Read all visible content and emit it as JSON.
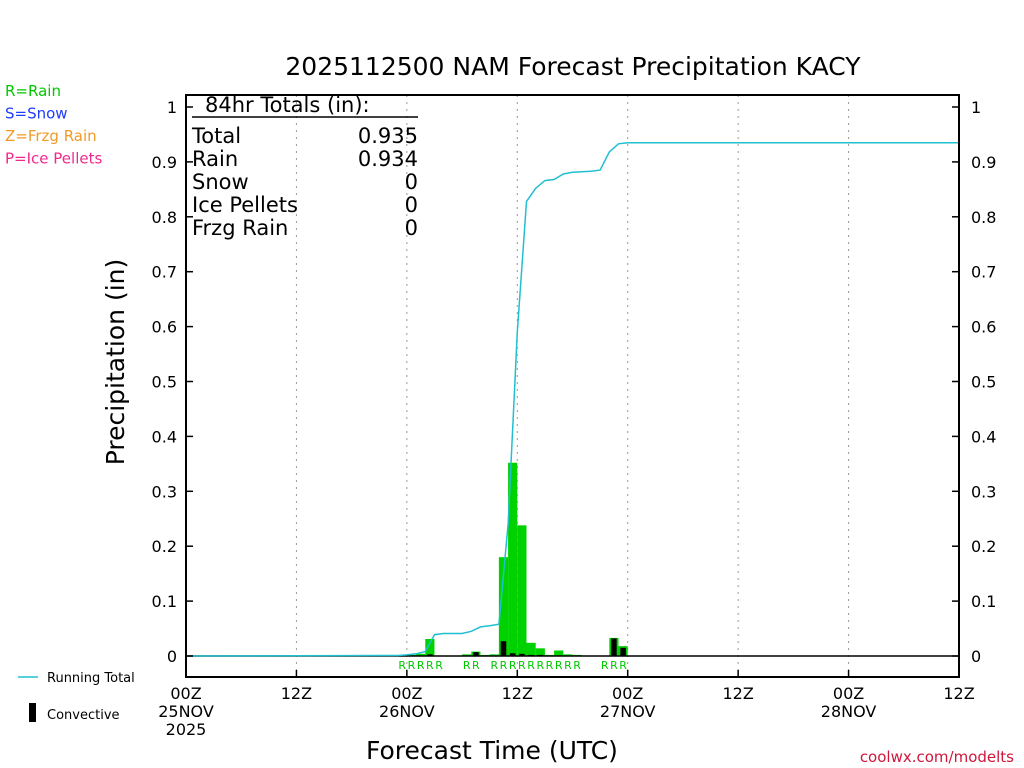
{
  "chart_data": {
    "type": "bar",
    "title": "2025112500 NAM Forecast Precipitation KACY",
    "xlabel": "Forecast Time (UTC)",
    "ylabel": "Precipitation (in)",
    "ylim": [
      0,
      1
    ],
    "xlim_hours": [
      0,
      84
    ],
    "y_ticks": [
      "0",
      "0.1",
      "0.2",
      "0.3",
      "0.4",
      "0.5",
      "0.6",
      "0.7",
      "0.8",
      "0.9",
      "1"
    ],
    "x_ticks": [
      {
        "hour": 0,
        "lines": [
          "00Z",
          "25NOV",
          "2025"
        ]
      },
      {
        "hour": 12,
        "lines": [
          "12Z"
        ]
      },
      {
        "hour": 24,
        "lines": [
          "00Z",
          "26NOV"
        ]
      },
      {
        "hour": 36,
        "lines": [
          "12Z"
        ]
      },
      {
        "hour": 48,
        "lines": [
          "00Z",
          "27NOV"
        ]
      },
      {
        "hour": 60,
        "lines": [
          "12Z"
        ]
      },
      {
        "hour": 72,
        "lines": [
          "00Z",
          "28NOV"
        ]
      },
      {
        "hour": 84,
        "lines": [
          "12Z"
        ]
      }
    ],
    "grid": "vertical dotted lines at tick hours",
    "precip_type_legend": [
      {
        "label": "R=Rain",
        "color": "#00c800"
      },
      {
        "label": "S=Snow",
        "color": "#1e3cff"
      },
      {
        "label": "Z=Frzg Rain",
        "color": "#f09a28"
      },
      {
        "label": "P=Ice Pellets",
        "color": "#f0288c"
      }
    ],
    "series_legend": [
      {
        "label": "Running Total",
        "color": "#20c0d0"
      },
      {
        "label": "Convective",
        "color": "#000000"
      }
    ],
    "totals": {
      "heading": "84hr Totals (in):",
      "rows": [
        {
          "label": "Total",
          "value": "0.935"
        },
        {
          "label": "Rain",
          "value": "0.934"
        },
        {
          "label": "Snow",
          "value": "0"
        },
        {
          "label": "Ice Pellets",
          "value": "0"
        },
        {
          "label": "Frzg Rain",
          "value": "0"
        }
      ]
    },
    "bars": [
      {
        "hour": 24,
        "value": 0.001,
        "convective": 0
      },
      {
        "hour": 25,
        "value": 0.002,
        "convective": 0
      },
      {
        "hour": 26,
        "value": 0.004,
        "convective": 0.001
      },
      {
        "hour": 27,
        "value": 0.031,
        "convective": 0.003
      },
      {
        "hour": 31,
        "value": 0.003,
        "convective": 0
      },
      {
        "hour": 32,
        "value": 0.008,
        "convective": 0.007
      },
      {
        "hour": 33,
        "value": 0.002,
        "convective": 0
      },
      {
        "hour": 34,
        "value": 0.003,
        "convective": 0
      },
      {
        "hour": 35,
        "value": 0.18,
        "convective": 0.027
      },
      {
        "hour": 36,
        "value": 0.352,
        "convective": 0.005
      },
      {
        "hour": 37,
        "value": 0.238,
        "convective": 0.004
      },
      {
        "hour": 38,
        "value": 0.024,
        "convective": 0.002
      },
      {
        "hour": 39,
        "value": 0.014,
        "convective": 0.002
      },
      {
        "hour": 40,
        "value": 0.002,
        "convective": 0
      },
      {
        "hour": 41,
        "value": 0.01,
        "convective": 0.001
      },
      {
        "hour": 42,
        "value": 0.003,
        "convective": 0
      },
      {
        "hour": 43,
        "value": 0.002,
        "convective": 0
      },
      {
        "hour": 47,
        "value": 0.033,
        "convective": 0.032
      },
      {
        "hour": 48,
        "value": 0.018,
        "convective": 0.015
      }
    ],
    "ptype_labels": [
      {
        "hour": 24,
        "label": "R"
      },
      {
        "hour": 25,
        "label": "R"
      },
      {
        "hour": 26,
        "label": "R"
      },
      {
        "hour": 27,
        "label": "R"
      },
      {
        "hour": 28,
        "label": "R"
      },
      {
        "hour": 31,
        "label": "R"
      },
      {
        "hour": 32,
        "label": "R"
      },
      {
        "hour": 34,
        "label": "R"
      },
      {
        "hour": 35,
        "label": "R"
      },
      {
        "hour": 36,
        "label": "R"
      },
      {
        "hour": 37,
        "label": "R"
      },
      {
        "hour": 38,
        "label": "R"
      },
      {
        "hour": 39,
        "label": "R"
      },
      {
        "hour": 40,
        "label": "R"
      },
      {
        "hour": 41,
        "label": "R"
      },
      {
        "hour": 42,
        "label": "R"
      },
      {
        "hour": 43,
        "label": "R"
      },
      {
        "hour": 46,
        "label": "R"
      },
      {
        "hour": 47,
        "label": "R"
      },
      {
        "hour": 48,
        "label": "R"
      }
    ],
    "running_total": {
      "x": [
        0,
        23,
        24,
        25,
        26,
        27,
        28,
        30,
        31,
        32,
        33,
        34,
        35,
        36,
        37,
        38,
        39,
        40,
        41,
        42,
        43,
        44,
        45,
        46,
        47,
        48,
        49,
        50,
        60,
        72,
        84
      ],
      "y": [
        0,
        0.001,
        0.002,
        0.004,
        0.008,
        0.039,
        0.041,
        0.041,
        0.045,
        0.053,
        0.055,
        0.058,
        0.24,
        0.59,
        0.828,
        0.852,
        0.866,
        0.868,
        0.878,
        0.881,
        0.882,
        0.883,
        0.885,
        0.918,
        0.933,
        0.935,
        0.935,
        0.935,
        0.935,
        0.935,
        0.935
      ]
    },
    "credit": "coolwx.com/modelts"
  }
}
